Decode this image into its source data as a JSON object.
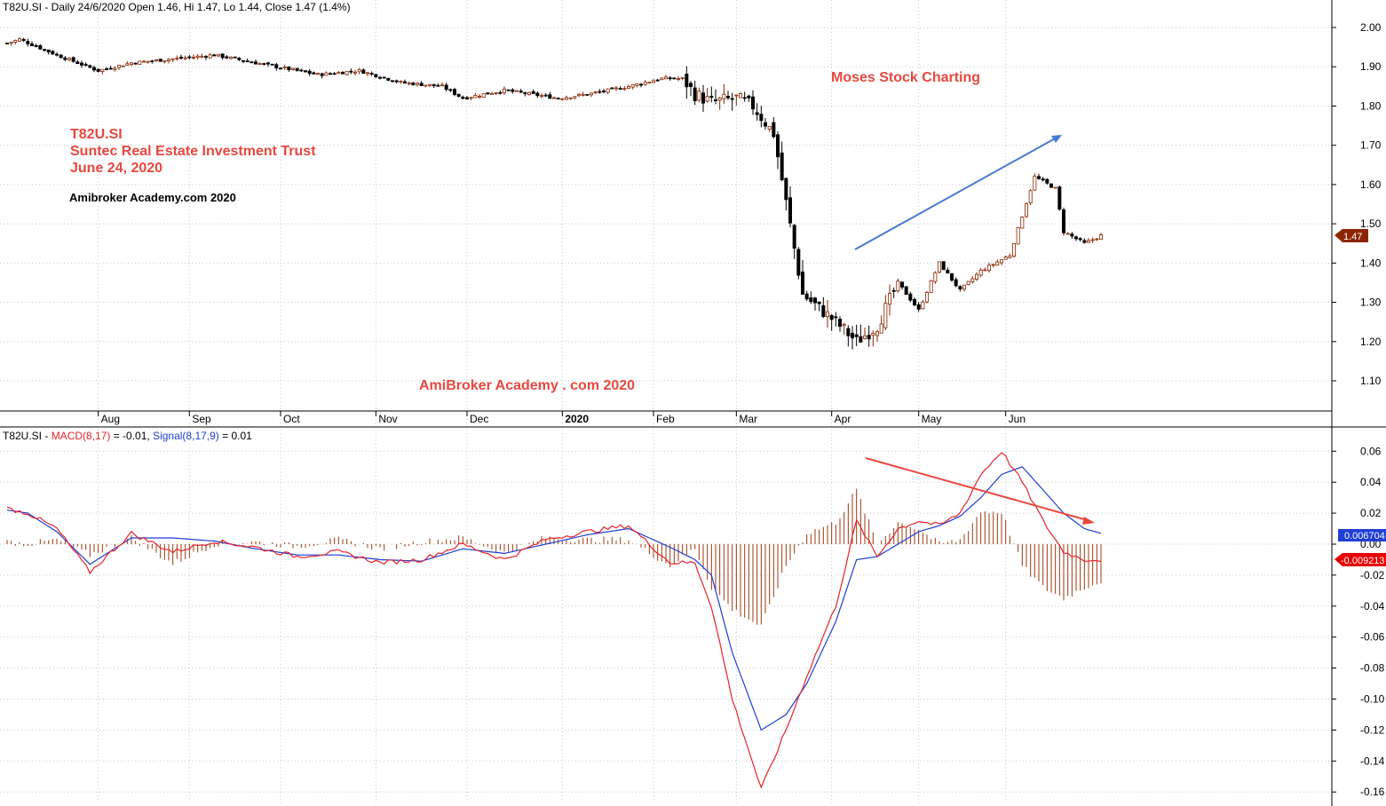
{
  "header": {
    "price_title": "T82U.SI - Daily 24/6/2020 Open 1.46, Hi 1.47, Lo 1.44, Close 1.47 (1.4%)",
    "macd_prefix": "T82U.SI - ",
    "macd_label": "MACD(8,17)",
    "macd_value": " = -0.01, ",
    "signal_label": "Signal(8,17,9)",
    "signal_value": " = 0.01"
  },
  "annotations": {
    "ticker": "T82U.SI",
    "name": "Suntec Real Estate Investment Trust",
    "date": "June 24, 2020",
    "watermark1": "Amibroker Academy.com  2020",
    "watermark2": "Moses Stock Charting",
    "watermark3": "AmiBroker Academy . com  2020"
  },
  "badges": {
    "close": "1.47",
    "signal": "0.006704",
    "macd": "-0.009213"
  },
  "colors": {
    "up_candle": "#8b2500",
    "down_candle": "#000000",
    "macd_line": "#e8222a",
    "signal_line": "#1f3fd6",
    "histogram": "#9c3a10",
    "trend_up": "#4a78d6",
    "trend_down": "#e8483f",
    "annotation_text": "#e8483f"
  },
  "chart_data": [
    {
      "type": "candlestick",
      "title": "T82U.SI - Daily 24/6/2020 Open 1.46, Hi 1.47, Lo 1.44, Close 1.47 (1.4%)",
      "ylim": [
        1.02,
        2.03
      ],
      "y_ticks": [
        "2.00",
        "1.90",
        "1.80",
        "1.70",
        "1.60",
        "1.50",
        "1.40",
        "1.30",
        "1.20",
        "1.10"
      ],
      "x_ticks": [
        "Aug",
        "Sep",
        "Oct",
        "Nov",
        "Dec",
        "2020",
        "Feb",
        "Mar",
        "Apr",
        "May",
        "Jun"
      ],
      "grid": true,
      "last_close": 1.47,
      "anchors_idx": [
        0,
        3,
        12,
        22,
        30,
        40,
        50,
        60,
        75,
        85,
        95,
        105,
        110,
        120,
        133,
        140,
        150,
        158,
        163,
        166,
        170,
        176,
        180,
        185,
        192,
        200,
        205,
        210,
        215,
        220,
        225,
        230,
        235,
        242,
        248,
        253,
        255,
        260,
        264
      ],
      "anchors_price": [
        1.96,
        1.97,
        1.93,
        1.89,
        1.91,
        1.92,
        1.93,
        1.91,
        1.88,
        1.89,
        1.86,
        1.85,
        1.82,
        1.84,
        1.82,
        1.83,
        1.85,
        1.87,
        1.87,
        1.83,
        1.81,
        1.82,
        1.8,
        1.73,
        1.32,
        1.25,
        1.2,
        1.24,
        1.35,
        1.28,
        1.4,
        1.33,
        1.38,
        1.42,
        1.62,
        1.59,
        1.48,
        1.45,
        1.47
      ],
      "n_bars": 265
    },
    {
      "type": "line",
      "ylabel": "",
      "ylim": [
        -0.165,
        0.07
      ],
      "y_ticks": [
        "0.06",
        "0.04",
        "0.02",
        "0.00",
        "-0.02",
        "-0.04",
        "-0.06",
        "-0.08",
        "-0.10",
        "-0.12",
        "-0.14",
        "-0.16"
      ],
      "series": [
        {
          "name": "MACD(8,17)",
          "last_value": -0.01,
          "anchors_idx": [
            0,
            5,
            12,
            20,
            30,
            40,
            50,
            60,
            70,
            80,
            90,
            100,
            110,
            120,
            130,
            140,
            150,
            160,
            166,
            170,
            175,
            182,
            188,
            193,
            200,
            205,
            210,
            215,
            220,
            225,
            230,
            235,
            240,
            245,
            250,
            255,
            260,
            264
          ],
          "anchors_val": [
            0.023,
            0.02,
            0.01,
            -0.018,
            0.007,
            -0.005,
            0.002,
            -0.002,
            -0.008,
            -0.005,
            -0.012,
            -0.01,
            0.0,
            -0.01,
            0.003,
            0.008,
            0.012,
            -0.012,
            -0.012,
            -0.04,
            -0.1,
            -0.158,
            -0.12,
            -0.085,
            -0.04,
            0.015,
            -0.008,
            0.01,
            0.015,
            0.012,
            0.02,
            0.045,
            0.06,
            0.04,
            0.015,
            -0.005,
            -0.01,
            -0.01
          ]
        },
        {
          "name": "Signal(8,17,9)",
          "last_value": 0.01,
          "anchors_idx": [
            0,
            5,
            12,
            20,
            30,
            40,
            50,
            60,
            70,
            80,
            90,
            100,
            110,
            120,
            130,
            140,
            150,
            160,
            166,
            170,
            175,
            182,
            188,
            193,
            200,
            205,
            210,
            215,
            220,
            225,
            230,
            235,
            240,
            245,
            250,
            255,
            260,
            264
          ],
          "anchors_val": [
            0.022,
            0.02,
            0.008,
            -0.013,
            0.004,
            0.004,
            0.002,
            -0.003,
            -0.007,
            -0.007,
            -0.01,
            -0.011,
            -0.003,
            -0.006,
            0.0,
            0.006,
            0.01,
            -0.002,
            -0.01,
            -0.02,
            -0.07,
            -0.12,
            -0.11,
            -0.09,
            -0.05,
            -0.01,
            -0.008,
            0.0,
            0.008,
            0.012,
            0.018,
            0.03,
            0.045,
            0.05,
            0.035,
            0.02,
            0.01,
            0.007
          ]
        }
      ]
    }
  ]
}
